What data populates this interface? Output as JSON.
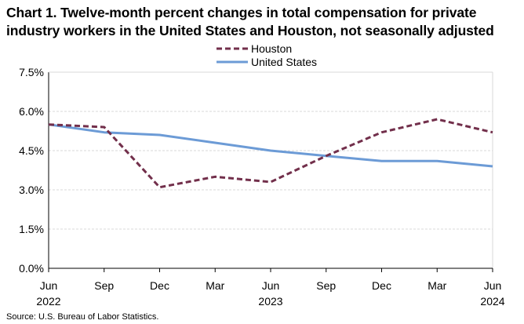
{
  "title": "Chart 1. Twelve-month percent changes in total compensation for private industry workers in the United States and Houston, not seasonally adjusted",
  "source": "Source: U.S. Bureau of Labor Statistics.",
  "colors": {
    "houston": "#722F4B",
    "united_states": "#6C9BD6",
    "grid": "#D9D9D9",
    "axis": "#000000"
  },
  "chart_data": {
    "type": "line",
    "title": "Chart 1. Twelve-month percent changes in total compensation for private industry workers in the United States and Houston, not seasonally adjusted",
    "xlabel": "",
    "ylabel": "",
    "categories": [
      "Jun 2022",
      "Sep",
      "Dec",
      "Mar",
      "Jun 2023",
      "Sep",
      "Dec",
      "Mar",
      "Jun 2024"
    ],
    "x_tick_labels": [
      {
        "line1": "Jun",
        "line2": "2022"
      },
      {
        "line1": "Sep",
        "line2": ""
      },
      {
        "line1": "Dec",
        "line2": ""
      },
      {
        "line1": "Mar",
        "line2": ""
      },
      {
        "line1": "Jun",
        "line2": "2023"
      },
      {
        "line1": "Sep",
        "line2": ""
      },
      {
        "line1": "Dec",
        "line2": ""
      },
      {
        "line1": "Mar",
        "line2": ""
      },
      {
        "line1": "Jun",
        "line2": "2024"
      }
    ],
    "y_ticks": [
      0.0,
      1.5,
      3.0,
      4.5,
      6.0,
      7.5
    ],
    "y_tick_labels": [
      "0.0%",
      "1.5%",
      "3.0%",
      "4.5%",
      "6.0%",
      "7.5%"
    ],
    "ylim": [
      0,
      7.5
    ],
    "grid": true,
    "legend_position": "top-center",
    "series": [
      {
        "name": "Houston",
        "style": "dashed",
        "values": [
          5.5,
          5.4,
          3.1,
          3.5,
          3.3,
          4.3,
          5.2,
          5.7,
          5.2
        ]
      },
      {
        "name": "United States",
        "style": "solid",
        "values": [
          5.5,
          5.2,
          5.1,
          4.8,
          4.5,
          4.3,
          4.1,
          4.1,
          3.9
        ]
      }
    ]
  }
}
